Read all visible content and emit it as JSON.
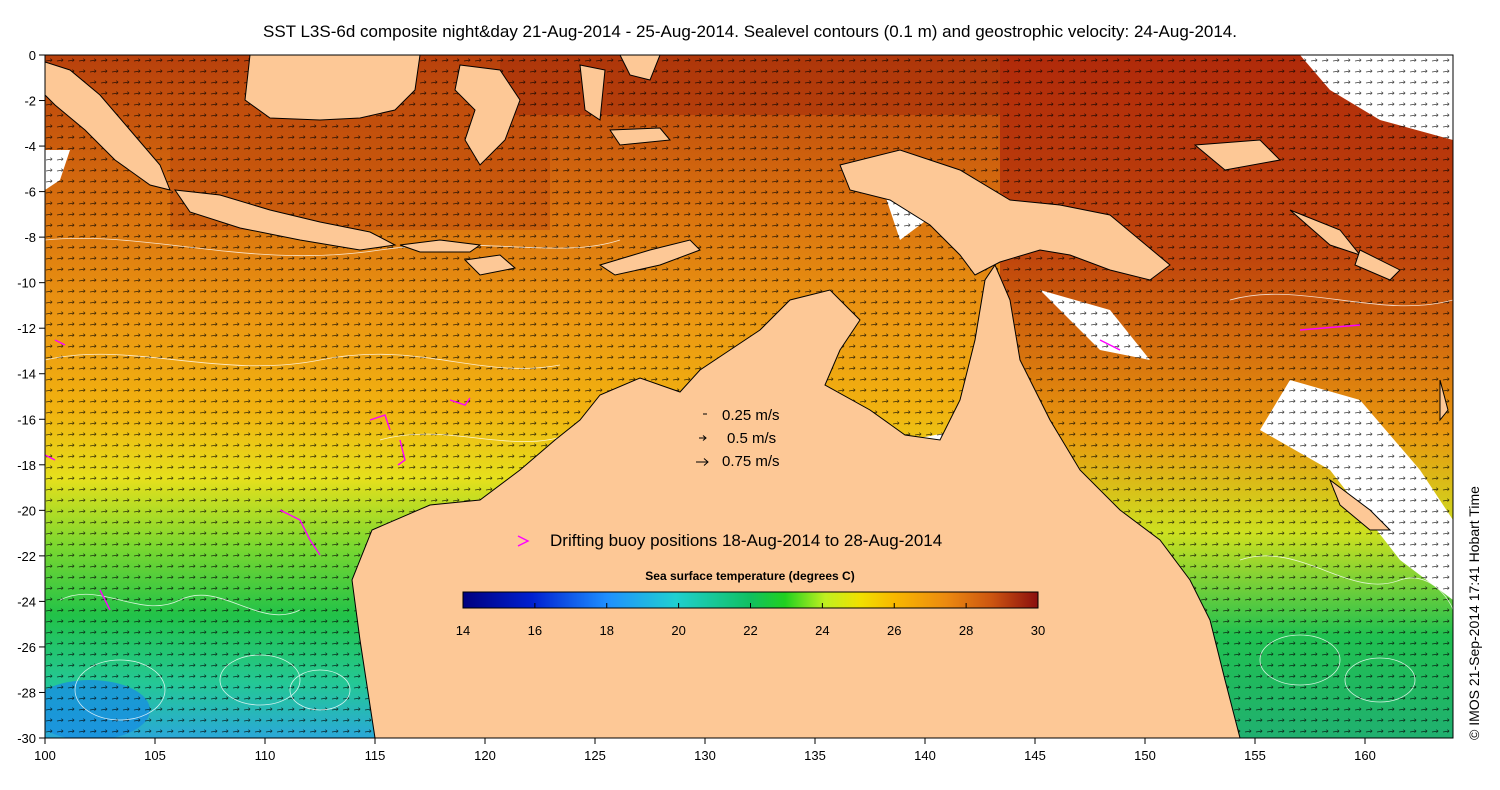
{
  "title": "SST L3S-6d composite night&day 21-Aug-2014 - 25-Aug-2014. Sealevel contours (0.1 m) and geostrophic velocity: 24-Aug-2014.",
  "credit": "© IMOS 21-Sep-2014 17:41 Hobart Time",
  "axes": {
    "x_ticks": [
      "100",
      "105",
      "110",
      "115",
      "120",
      "125",
      "130",
      "135",
      "140",
      "145",
      "150",
      "155",
      "160"
    ],
    "y_ticks": [
      "0",
      "-2",
      "-4",
      "-6",
      "-8",
      "-10",
      "-12",
      "-14",
      "-16",
      "-18",
      "-20",
      "-22",
      "-24",
      "-26",
      "-28",
      "-30"
    ],
    "lon_range": [
      100,
      164
    ],
    "lat_range": [
      -30,
      0
    ]
  },
  "velocity_legend": [
    {
      "label": "0.25 m/s",
      "speed": 0.25
    },
    {
      "label": "0.5 m/s",
      "speed": 0.5
    },
    {
      "label": "0.75 m/s",
      "speed": 0.75
    }
  ],
  "buoy_legend": {
    "label": "Drifting buoy positions 18-Aug-2014 to 28-Aug-2014",
    "color": "#ff00ff"
  },
  "colorbar": {
    "title": "Sea surface temperature (degrees C)",
    "min": 14,
    "max": 30,
    "ticks": [
      "14",
      "16",
      "18",
      "20",
      "22",
      "24",
      "26",
      "28",
      "30"
    ]
  },
  "colors": {
    "land": "#fdc896",
    "cloud": "#ffffff",
    "coast": "#000000",
    "contour": "#ffffff",
    "buoy": "#ff00ff"
  }
}
